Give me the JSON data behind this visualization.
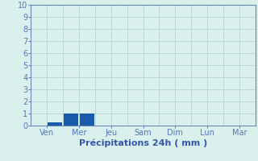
{
  "days": [
    "Ven",
    "Mer",
    "Jeu",
    "Sam",
    "Dim",
    "Lun",
    "Mar"
  ],
  "n_days": 7,
  "bars": [
    {
      "day_index": 0,
      "sub_index": 1,
      "value": 0.3,
      "color": "#1a5aaa"
    },
    {
      "day_index": 1,
      "sub_index": 0,
      "value": 1.0,
      "color": "#1a5aaa"
    },
    {
      "day_index": 1,
      "sub_index": 1,
      "value": 1.0,
      "color": "#1a5aaa"
    }
  ],
  "n_sub": 2,
  "ylim": [
    0,
    10
  ],
  "yticks": [
    0,
    1,
    2,
    3,
    4,
    5,
    6,
    7,
    8,
    9,
    10
  ],
  "xlabel": "Précipitations 24h ( mm )",
  "background_color": "#daf0ec",
  "grid_color": "#b8d4d0",
  "axis_color": "#6688bb",
  "tick_color": "#5577bb",
  "label_color": "#3355aa",
  "xlabel_fontsize": 8,
  "tick_fontsize": 7
}
